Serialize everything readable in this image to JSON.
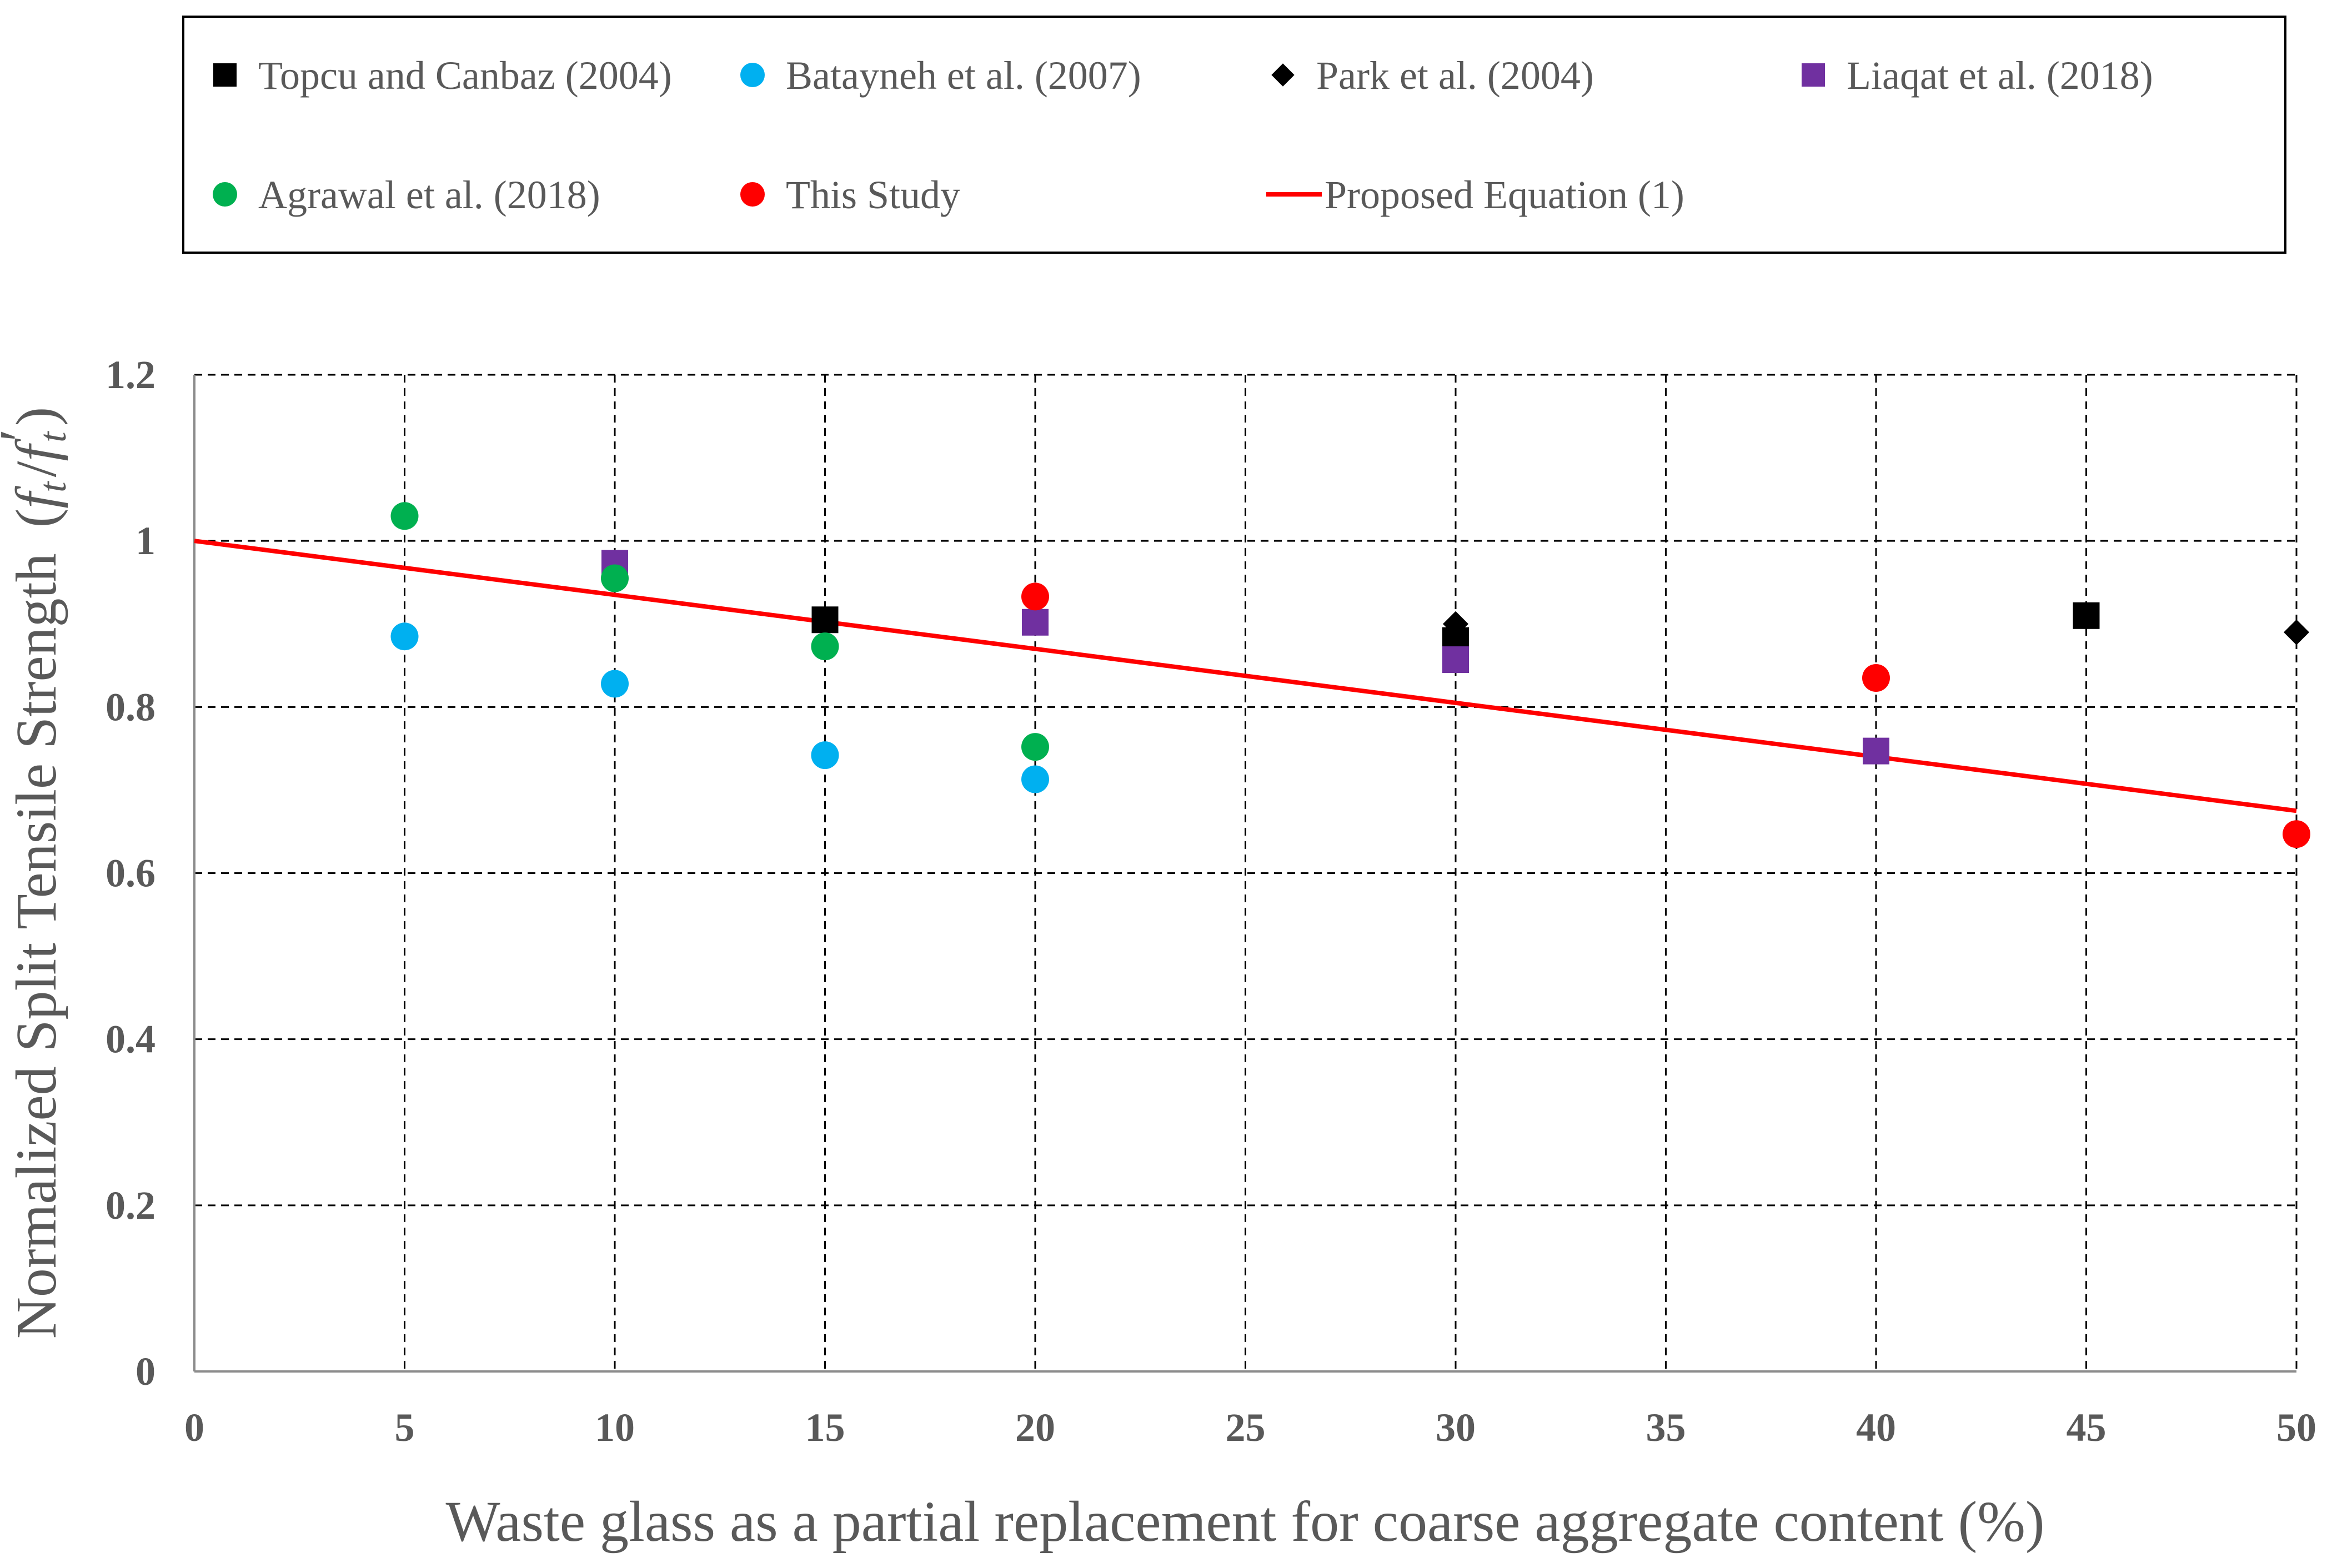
{
  "chart_data": {
    "type": "scatter",
    "title": "",
    "xlabel": "Waste glass as a partial replacement for coarse aggregate content (%)",
    "ylabel": "Normalized Split Tensile Strength",
    "ylabel_math": {
      "open": "(",
      "f": "f",
      "sub": "t",
      "slash": "/",
      "prime": "′",
      "close": ")"
    },
    "xlim": [
      0,
      50
    ],
    "ylim": [
      0,
      1.2
    ],
    "x_ticks": [
      0,
      5,
      10,
      15,
      20,
      25,
      30,
      35,
      40,
      45,
      50
    ],
    "y_ticks": [
      0,
      0.2,
      0.4,
      0.6,
      0.8,
      1,
      1.2
    ],
    "x_tick_labels": [
      "0",
      "5",
      "10",
      "15",
      "20",
      "25",
      "30",
      "35",
      "40",
      "45",
      "50"
    ],
    "y_tick_labels": [
      "0",
      "0.2",
      "0.4",
      "0.6",
      "0.8",
      "1",
      "1.2"
    ],
    "grid": true,
    "legend_position": "top",
    "series": [
      {
        "name": "Topcu and Canbaz (2004)",
        "marker": "square",
        "color": "#000000",
        "x": [
          15,
          30,
          45
        ],
        "y": [
          0.905,
          0.88,
          0.91
        ]
      },
      {
        "name": "Batayneh et al. (2007)",
        "marker": "circle",
        "color": "#00B0F0",
        "x": [
          5,
          10,
          15,
          20
        ],
        "y": [
          0.885,
          0.828,
          0.742,
          0.713
        ]
      },
      {
        "name": "Park et al. (2004)",
        "marker": "diamond",
        "color": "#000000",
        "x": [
          30,
          50
        ],
        "y": [
          0.9,
          0.89
        ]
      },
      {
        "name": "Liaqat et al. (2018)",
        "marker": "square",
        "color": "#7030A0",
        "x": [
          10,
          20,
          30,
          40
        ],
        "y": [
          0.973,
          0.902,
          0.857,
          0.747
        ]
      },
      {
        "name": "Agrawal et al. (2018)",
        "marker": "circle",
        "color": "#00B050",
        "x": [
          5,
          10,
          15,
          20
        ],
        "y": [
          1.03,
          0.955,
          0.873,
          0.752
        ]
      },
      {
        "name": "This Study",
        "marker": "circle",
        "color": "#FF0000",
        "x": [
          20,
          40,
          50
        ],
        "y": [
          0.933,
          0.835,
          0.647
        ]
      }
    ],
    "lines": [
      {
        "name": "Proposed Equation (1)",
        "color": "#FF0000",
        "x": [
          0,
          50
        ],
        "y": [
          1.0,
          0.675
        ]
      }
    ]
  }
}
